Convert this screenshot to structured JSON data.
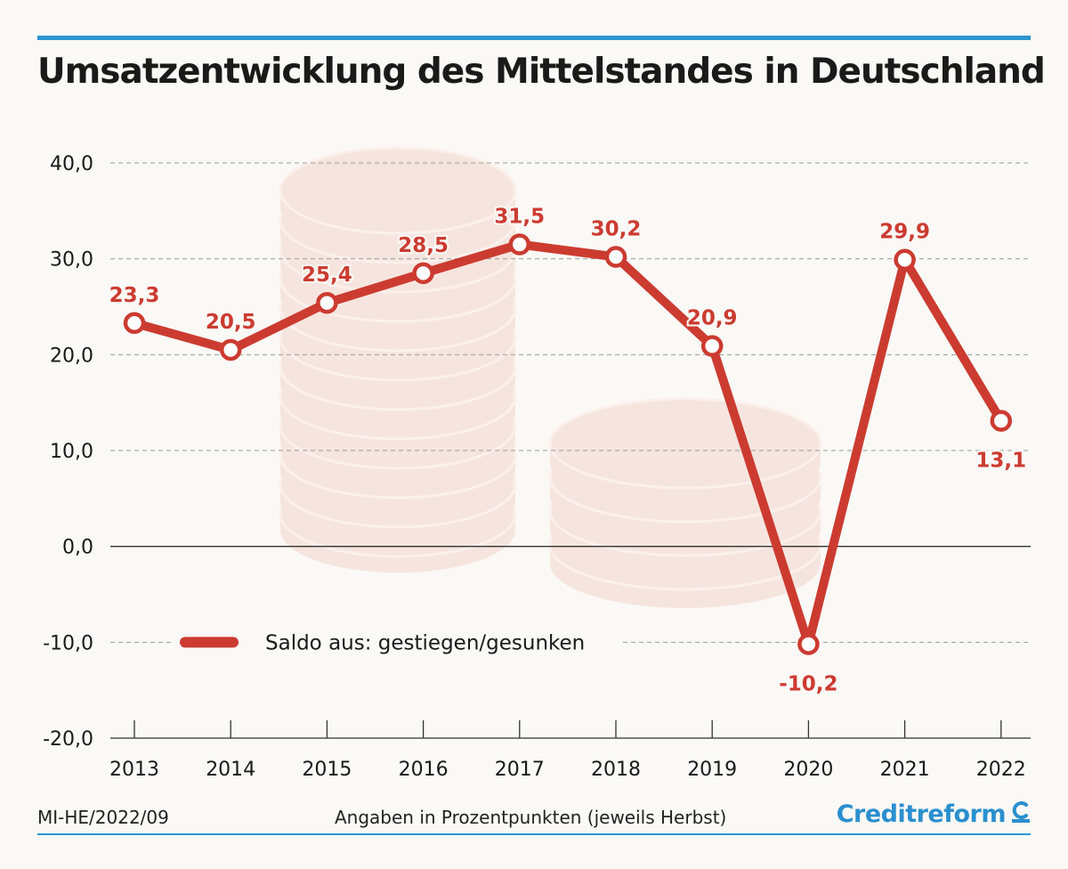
{
  "title": "Umsatzentwicklung des Mittelstandes in Deutschland",
  "footer": {
    "code": "MI-HE/2022/09",
    "note": "Angaben in Prozentpunkten (jeweils Herbst)",
    "brand": "Creditreform"
  },
  "colors": {
    "accent": "#2a96cf",
    "series": "#cc3b30",
    "brand": "#2a8fcf"
  },
  "icons": {
    "brand_mark": "creditreform-c-icon",
    "background": "coin-stacks"
  },
  "chart_data": {
    "type": "line",
    "x": [
      "2013",
      "2014",
      "2015",
      "2016",
      "2017",
      "2018",
      "2019",
      "2020",
      "2021",
      "2022"
    ],
    "series": [
      {
        "name": "Saldo aus: gestiegen/gesunken",
        "values": [
          23.3,
          20.5,
          25.4,
          28.5,
          31.5,
          30.2,
          20.9,
          -10.2,
          29.9,
          13.1
        ],
        "labels": [
          "23,3",
          "20,5",
          "25,4",
          "28,5",
          "31,5",
          "30,2",
          "20,9",
          "-10,2",
          "29,9",
          "13,1"
        ]
      }
    ],
    "ylim": [
      -20,
      40
    ],
    "yticks": [
      40,
      30,
      20,
      10,
      0,
      -10,
      -20
    ],
    "ytick_labels": [
      "40,0",
      "30,0",
      "20,0",
      "10,0",
      "0,0",
      "-10,0",
      "-20,0"
    ],
    "grid": "horizontal dashed",
    "legend": "bottom-left"
  }
}
